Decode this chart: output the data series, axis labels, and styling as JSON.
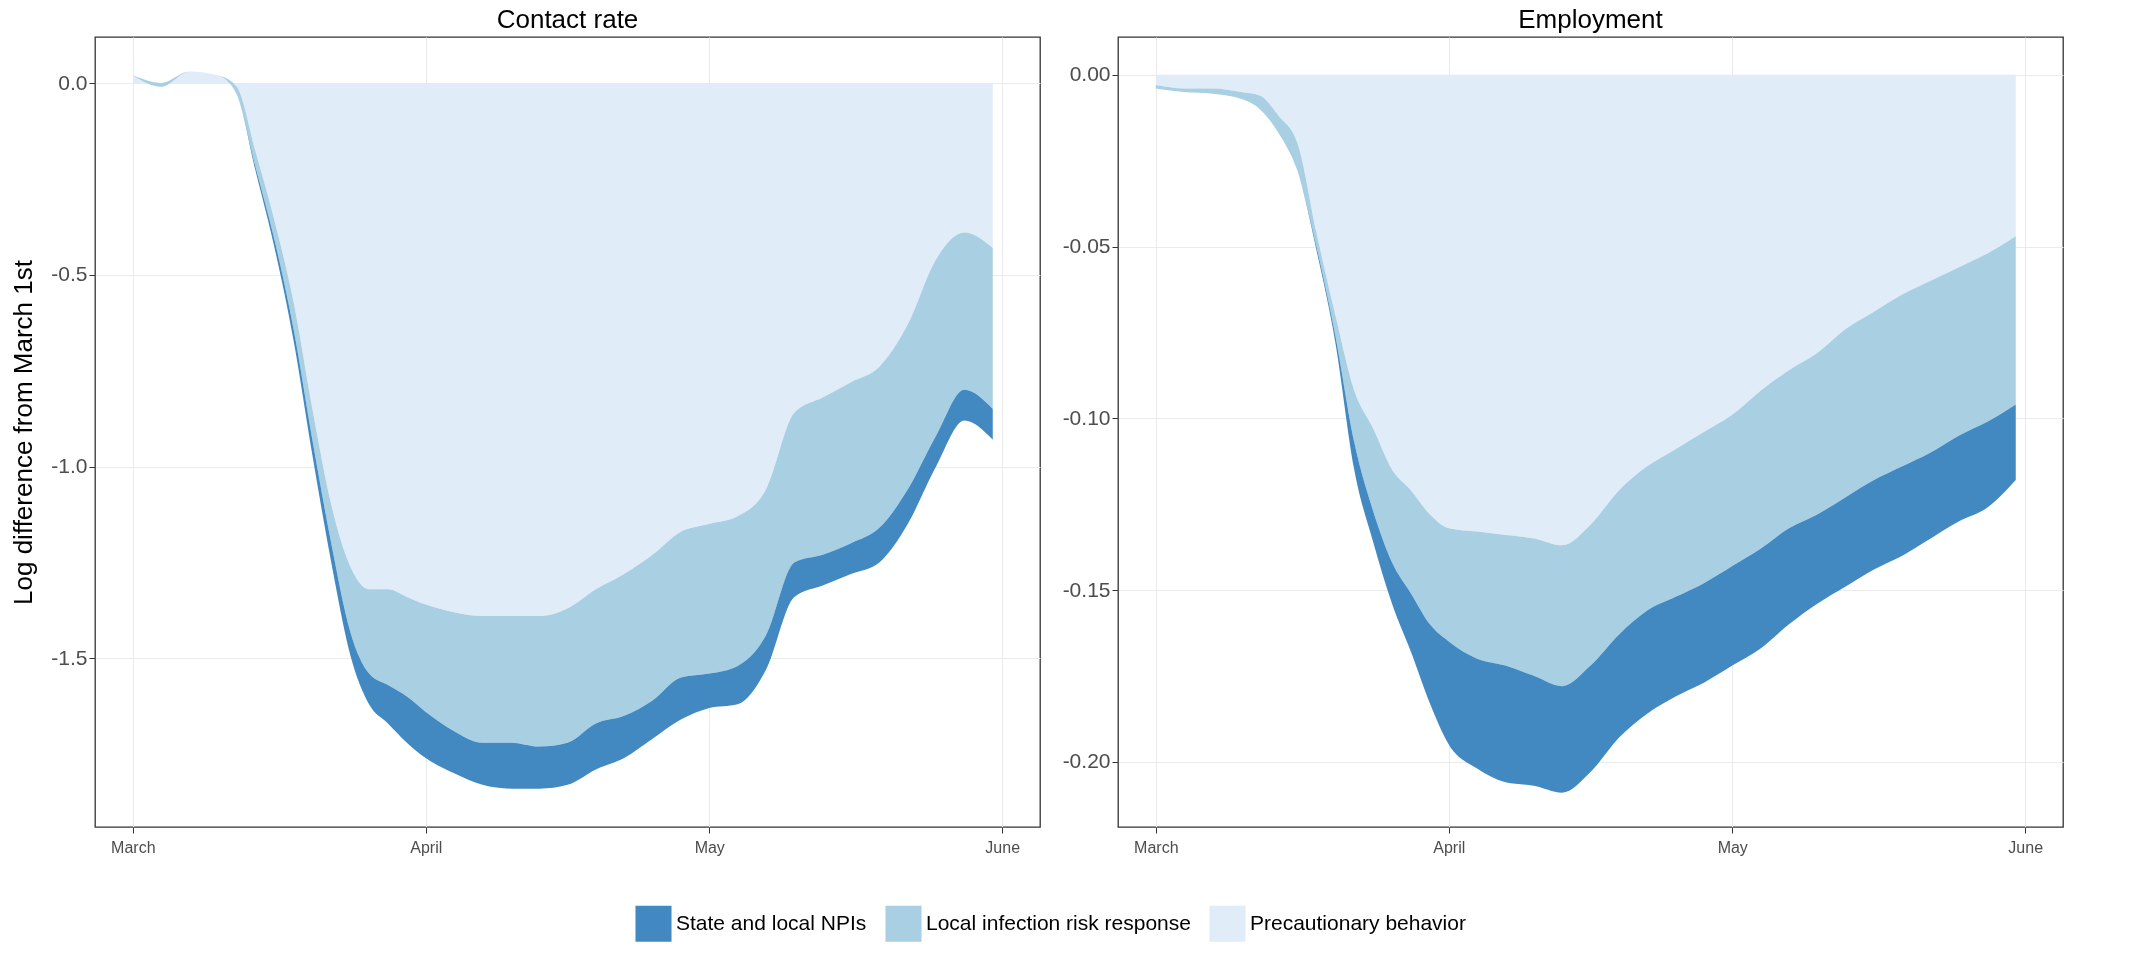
{
  "chart_data": [
    {
      "type": "area",
      "title": "Contact rate",
      "ylabel": "Log difference from March 1st",
      "stacked": true,
      "grid": true,
      "legend": "bottom",
      "x": [
        "--03-01",
        "--03-04",
        "--03-07",
        "--03-10",
        "--03-12",
        "--03-14",
        "--03-16",
        "--03-18",
        "--03-20",
        "--03-22",
        "--03-24",
        "--03-26",
        "--03-28",
        "--03-30",
        "--04-01",
        "--04-04",
        "--04-07",
        "--04-10",
        "--04-13",
        "--04-16",
        "--04-19",
        "--04-22",
        "--04-25",
        "--04-28",
        "--05-01",
        "--05-04",
        "--05-07",
        "--05-10",
        "--05-13",
        "--05-16",
        "--05-19",
        "--05-22",
        "--05-25",
        "--05-28",
        "--05-31"
      ],
      "xlim": [
        "--02-25",
        "--06-05"
      ],
      "xticks": [
        {
          "value": "--03-01",
          "label": "March"
        },
        {
          "value": "--04-01",
          "label": "April"
        },
        {
          "value": "--05-01",
          "label": "May"
        },
        {
          "value": "--06-01",
          "label": "June"
        }
      ],
      "ylim": [
        -1.94,
        0.12
      ],
      "yticks": [
        {
          "value": 0,
          "label": "0.0"
        },
        -0.5,
        {
          "value": -1,
          "label": "-1.0"
        },
        -1.5
      ],
      "series": [
        {
          "name": "Precautionary behavior",
          "color": "#e0ecf7",
          "values": [
            0.02,
            0,
            0.03,
            0.02,
            -0.01,
            -0.18,
            -0.36,
            -0.57,
            -0.85,
            -1.1,
            -1.26,
            -1.32,
            -1.32,
            -1.34,
            -1.36,
            -1.38,
            -1.39,
            -1.39,
            -1.39,
            -1.37,
            -1.32,
            -1.28,
            -1.23,
            -1.17,
            -1.15,
            -1.13,
            -1.06,
            -0.86,
            -0.82,
            -0.78,
            -0.74,
            -0.63,
            -0.46,
            -0.39,
            -0.43
          ]
        },
        {
          "name": "Local infection risk response",
          "color": "#a9cfe3",
          "values": [
            0,
            -0.01,
            0,
            0,
            -0.02,
            -0.04,
            -0.05,
            -0.07,
            -0.08,
            -0.1,
            -0.17,
            -0.22,
            -0.25,
            -0.26,
            -0.28,
            -0.31,
            -0.33,
            -0.33,
            -0.34,
            -0.35,
            -0.35,
            -0.37,
            -0.38,
            -0.38,
            -0.39,
            -0.39,
            -0.38,
            -0.39,
            -0.41,
            -0.42,
            -0.42,
            -0.43,
            -0.46,
            -0.41,
            -0.42
          ]
        },
        {
          "name": "State and local NPIs",
          "color": "#4389c1",
          "values": [
            0,
            0,
            0,
            0,
            0,
            -0.01,
            -0.02,
            -0.03,
            -0.04,
            -0.05,
            -0.06,
            -0.08,
            -0.1,
            -0.12,
            -0.12,
            -0.11,
            -0.11,
            -0.12,
            -0.11,
            -0.11,
            -0.12,
            -0.11,
            -0.1,
            -0.11,
            -0.09,
            -0.1,
            -0.09,
            -0.09,
            -0.08,
            -0.08,
            -0.09,
            -0.09,
            -0.08,
            -0.08,
            -0.08
          ]
        }
      ]
    },
    {
      "type": "area",
      "title": "Employment",
      "stacked": true,
      "grid": true,
      "legend": "bottom",
      "x": [
        "--03-01",
        "--03-04",
        "--03-07",
        "--03-10",
        "--03-12",
        "--03-14",
        "--03-16",
        "--03-18",
        "--03-20",
        "--03-22",
        "--03-24",
        "--03-26",
        "--03-28",
        "--03-30",
        "--04-01",
        "--04-04",
        "--04-07",
        "--04-10",
        "--04-13",
        "--04-16",
        "--04-19",
        "--04-22",
        "--04-25",
        "--04-28",
        "--05-01",
        "--05-04",
        "--05-07",
        "--05-10",
        "--05-13",
        "--05-16",
        "--05-19",
        "--05-22",
        "--05-25",
        "--05-28",
        "--05-31"
      ],
      "xlim": [
        "--02-25",
        "--06-05"
      ],
      "xticks": [
        {
          "value": "--03-01",
          "label": "March"
        },
        {
          "value": "--04-01",
          "label": "April"
        },
        {
          "value": "--05-01",
          "label": "May"
        },
        {
          "value": "--06-01",
          "label": "June"
        }
      ],
      "ylim": [
        -0.219,
        0.011
      ],
      "yticks": [
        {
          "value": 0,
          "label": "0.00"
        },
        -0.05,
        {
          "value": -0.1,
          "label": "-0.10"
        },
        -0.15,
        {
          "value": -0.2,
          "label": "-0.20"
        }
      ],
      "series": [
        {
          "name": "Precautionary behavior",
          "color": "#e0ecf7",
          "values": [
            -0.003,
            -0.004,
            -0.004,
            -0.005,
            -0.006,
            -0.012,
            -0.02,
            -0.046,
            -0.07,
            -0.092,
            -0.103,
            -0.115,
            -0.121,
            -0.128,
            -0.132,
            -0.133,
            -0.134,
            -0.135,
            -0.137,
            -0.131,
            -0.121,
            -0.114,
            -0.109,
            -0.104,
            -0.099,
            -0.092,
            -0.086,
            -0.081,
            -0.074,
            -0.069,
            -0.064,
            -0.06,
            -0.056,
            -0.052,
            -0.047
          ]
        },
        {
          "name": "Local infection risk response",
          "color": "#a9cfe3",
          "values": [
            -0.001,
            -0.001,
            -0.0015,
            -0.002,
            -0.004,
            -0.005,
            -0.008,
            -0.004,
            -0.006,
            -0.015,
            -0.024,
            -0.027,
            -0.03,
            -0.032,
            -0.033,
            -0.037,
            -0.038,
            -0.04,
            -0.041,
            -0.041,
            -0.042,
            -0.042,
            -0.043,
            -0.044,
            -0.044,
            -0.046,
            -0.046,
            -0.047,
            -0.049,
            -0.049,
            -0.05,
            -0.05,
            -0.049,
            -0.049,
            -0.049
          ]
        },
        {
          "name": "State and local NPIs",
          "color": "#4389c1",
          "values": [
            0,
            0,
            0,
            0,
            0,
            0,
            0,
            -0.001,
            -0.002,
            -0.008,
            -0.009,
            -0.012,
            -0.017,
            -0.023,
            -0.03,
            -0.032,
            -0.034,
            -0.032,
            -0.031,
            -0.031,
            -0.03,
            -0.03,
            -0.029,
            -0.029,
            -0.029,
            -0.029,
            -0.028,
            -0.026,
            -0.026,
            -0.026,
            -0.026,
            -0.025,
            -0.025,
            -0.025,
            -0.022
          ]
        }
      ]
    }
  ]
}
